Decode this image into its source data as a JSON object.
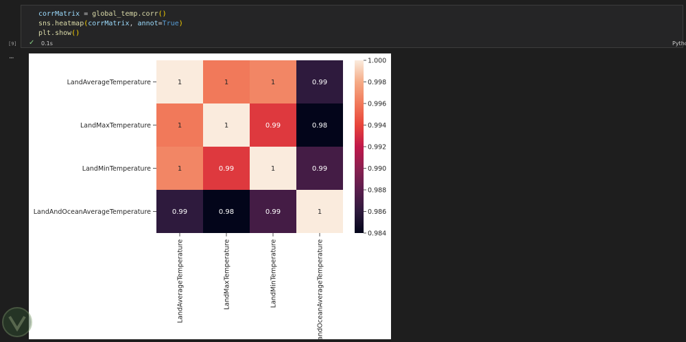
{
  "cell": {
    "execution_count": "[9]",
    "code_lines": [
      {
        "var": "corrMatrix",
        "op": " = ",
        "call": "global_temp.corr",
        "args": "()"
      },
      {
        "var": "",
        "op": "",
        "call": "sns.heatmap",
        "args": "(corrMatrix, annot=True)"
      },
      {
        "var": "",
        "op": "",
        "call": "plt.show",
        "args": "()"
      }
    ],
    "code_line_1": "corrMatrix = global_temp.corr()",
    "code_line_2": "sns.heatmap(corrMatrix, annot=True)",
    "code_line_3": "plt.show()",
    "status_icon": "check-icon",
    "execution_time": "0.1s",
    "kernel_label": "Python",
    "output_collapse": "..."
  },
  "colors": {
    "editor_bg": "#1e1e1e",
    "cell_bg": "#252526",
    "success": "#89d185"
  },
  "chart_data": {
    "type": "heatmap",
    "labels": [
      "LandAverageTemperature",
      "LandMaxTemperature",
      "LandMinTemperature",
      "LandAndOceanAverageTemperature"
    ],
    "x_tick_labels": [
      "LandAverageTemperature",
      "LandMaxTemperature",
      "LandMinTemperature",
      "andOceanAverageTemperature"
    ],
    "values": [
      [
        1.0,
        0.996,
        0.9965,
        0.986
      ],
      [
        0.996,
        1.0,
        0.9935,
        0.9837
      ],
      [
        0.9965,
        0.9935,
        1.0,
        0.987
      ],
      [
        0.986,
        0.9837,
        0.987,
        1.0
      ]
    ],
    "annotations": [
      [
        "1",
        "1",
        "1",
        "0.99"
      ],
      [
        "1",
        "1",
        "0.99",
        "0.98"
      ],
      [
        "1",
        "0.99",
        "1",
        "0.99"
      ],
      [
        "0.99",
        "0.98",
        "0.99",
        "1"
      ]
    ],
    "colorbar": {
      "min": 0.984,
      "max": 1.0,
      "ticks": [
        "0.984",
        "0.986",
        "0.988",
        "0.990",
        "0.992",
        "0.994",
        "0.996",
        "0.998",
        "1.000"
      ]
    },
    "colormap": "rocket"
  }
}
